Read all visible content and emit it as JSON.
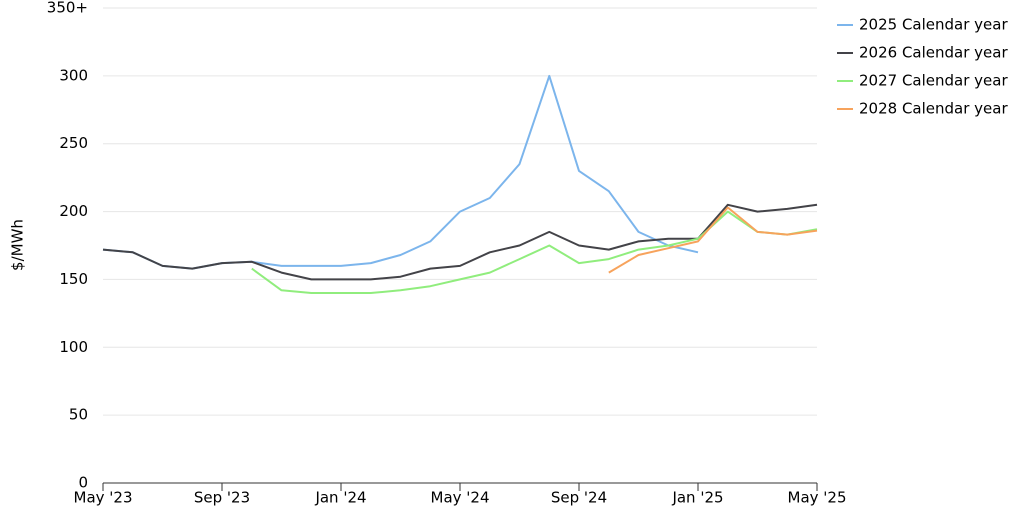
{
  "chart_data": {
    "type": "line",
    "y_label": "$/MWh",
    "x": [
      "2023-05",
      "2023-06",
      "2023-07",
      "2023-08",
      "2023-09",
      "2023-10",
      "2023-11",
      "2023-12",
      "2024-01",
      "2024-02",
      "2024-03",
      "2024-04",
      "2024-05",
      "2024-06",
      "2024-07",
      "2024-08",
      "2024-09",
      "2024-10",
      "2024-11",
      "2024-12",
      "2025-01",
      "2025-02",
      "2025-03",
      "2025-04",
      "2025-05"
    ],
    "series": [
      {
        "name": "2025 Calendar year",
        "color": "#7cb5ec",
        "values": [
          172,
          170,
          160,
          158,
          162,
          163,
          160,
          160,
          160,
          162,
          168,
          178,
          200,
          210,
          235,
          300,
          230,
          215,
          185,
          175,
          170,
          null,
          null,
          null,
          null
        ]
      },
      {
        "name": "2026 Calendar year",
        "color": "#434348",
        "values": [
          172,
          170,
          160,
          158,
          162,
          163,
          155,
          150,
          150,
          150,
          152,
          158,
          160,
          170,
          175,
          185,
          175,
          172,
          178,
          180,
          180,
          205,
          200,
          202,
          205
        ]
      },
      {
        "name": "2027 Calendar year",
        "color": "#90ed7d",
        "values": [
          null,
          null,
          null,
          null,
          null,
          158,
          142,
          140,
          140,
          140,
          142,
          145,
          150,
          155,
          165,
          175,
          162,
          165,
          172,
          175,
          180,
          200,
          185,
          183,
          187
        ]
      },
      {
        "name": "2028 Calendar year",
        "color": "#f7a35c",
        "values": [
          null,
          null,
          null,
          null,
          null,
          null,
          null,
          null,
          null,
          null,
          null,
          null,
          null,
          null,
          null,
          null,
          null,
          155,
          168,
          173,
          178,
          203,
          185,
          183,
          186
        ]
      }
    ],
    "ylim": [
      0,
      350
    ],
    "yticks": [
      0,
      50,
      100,
      150,
      200,
      250,
      300,
      {
        "value": 350,
        "label": "350+"
      }
    ],
    "xticks": [
      {
        "value": "2023-05",
        "label": "May '23"
      },
      {
        "value": "2023-09",
        "label": "Sep '23"
      },
      {
        "value": "2024-01",
        "label": "Jan '24"
      },
      {
        "value": "2024-05",
        "label": "May '24"
      },
      {
        "value": "2024-09",
        "label": "Sep '24"
      },
      {
        "value": "2025-01",
        "label": "Jan '25"
      },
      {
        "value": "2025-05",
        "label": "May '25"
      }
    ],
    "grid": true,
    "legend": "top-right"
  }
}
